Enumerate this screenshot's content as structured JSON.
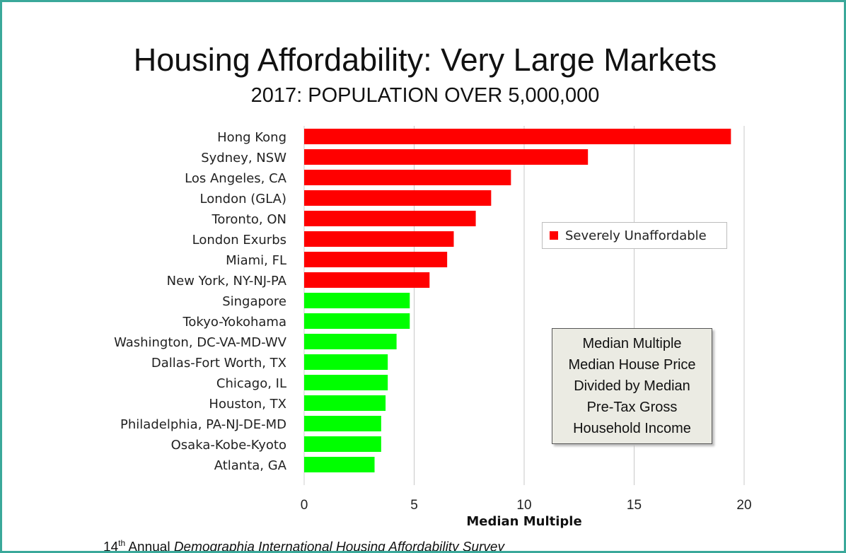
{
  "chart_data": {
    "type": "bar",
    "orientation": "horizontal",
    "title": "Housing Affordability: Very Large Markets",
    "subtitle": "2017: POPULATION OVER 5,000,000",
    "xlabel": "Median Multiple",
    "ylabel": "",
    "xlim": [
      0,
      20
    ],
    "xticks": [
      0,
      5,
      10,
      15,
      20
    ],
    "grid": "vertical",
    "categories": [
      "Hong Kong",
      "Sydney, NSW",
      "Los Angeles, CA",
      "London (GLA)",
      "Toronto, ON",
      "London Exurbs",
      "Miami, FL",
      "New York, NY-NJ-PA",
      "Singapore",
      "Tokyo-Yokohama",
      "Washington, DC-VA-MD-WV",
      "Dallas-Fort Worth, TX",
      "Chicago, IL",
      "Houston, TX",
      "Philadelphia, PA-NJ-DE-MD",
      "Osaka-Kobe-Kyoto",
      "Atlanta, GA"
    ],
    "values": [
      19.4,
      12.9,
      9.4,
      8.5,
      7.8,
      6.8,
      6.5,
      5.7,
      4.8,
      4.8,
      4.2,
      3.8,
      3.8,
      3.7,
      3.5,
      3.5,
      3.2
    ],
    "bar_colors": [
      "#ff0000",
      "#ff0000",
      "#ff0000",
      "#ff0000",
      "#ff0000",
      "#ff0000",
      "#ff0000",
      "#ff0000",
      "#00ff00",
      "#00ff00",
      "#00ff00",
      "#00ff00",
      "#00ff00",
      "#00ff00",
      "#00ff00",
      "#00ff00",
      "#00ff00"
    ],
    "legend": {
      "label": "Severely Unaffordable",
      "color": "#ff0000",
      "position": "right"
    }
  },
  "note_box": {
    "lines": [
      "Median Multiple",
      "Median House Price",
      "Divided by Median",
      "Pre-Tax Gross",
      "Household Income"
    ]
  },
  "footnote": {
    "prefix": "14",
    "superscript": "th",
    "mid": " Annual ",
    "italic": "Demographia International Housing Affordability Survey"
  },
  "colors": {
    "frame": "#3aa89a",
    "unaffordable": "#ff0000",
    "affordable": "#00ff00"
  }
}
